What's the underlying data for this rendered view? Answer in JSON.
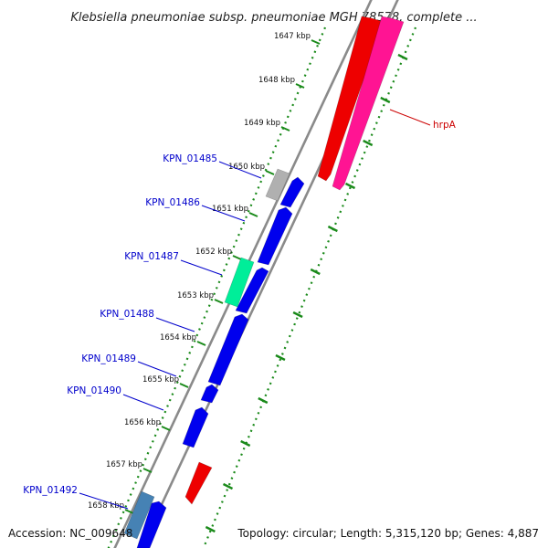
{
  "title": "Klebsiella pneumoniae subsp. pneumoniae MGH 78578, complete ...",
  "footer": {
    "accession": "Accession: NC_009648",
    "summary": "Topology: circular; Length: 5,315,120 bp; Genes: 4,887"
  },
  "ticks": [
    "1647 kbp",
    "1648 kbp",
    "1649 kbp",
    "1650 kbp",
    "1651 kbp",
    "1652 kbp",
    "1653 kbp",
    "1654 kbp",
    "1655 kbp",
    "1656 kbp",
    "1657 kbp",
    "1658 kbp"
  ],
  "gene_labels": [
    {
      "text": "hrpA",
      "color": "#cc0000"
    },
    {
      "text": "KPN_01485",
      "color": "#0000cc"
    },
    {
      "text": "KPN_01486",
      "color": "#0000cc"
    },
    {
      "text": "KPN_01487",
      "color": "#0000cc"
    },
    {
      "text": "KPN_01488",
      "color": "#0000cc"
    },
    {
      "text": "KPN_01489",
      "color": "#0000cc"
    },
    {
      "text": "KPN_01490",
      "color": "#0000cc"
    },
    {
      "text": "KPN_01492",
      "color": "#0000cc"
    }
  ],
  "colors": {
    "backbone": "#8a8a8a",
    "dotted_track": "#1a8a1a",
    "cds_blue": "#0000ee",
    "cds_red": "#ee0000",
    "cds_pink": "#ff1493",
    "cds_green": "#00ee99",
    "cds_gray": "#b0b0b0",
    "cds_steel": "#4682b4"
  }
}
